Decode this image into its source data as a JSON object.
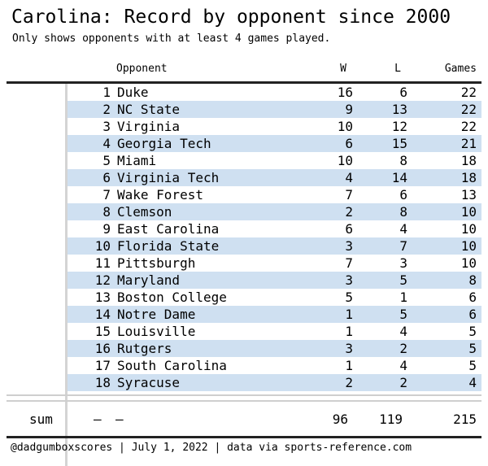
{
  "title": "Carolina: Record by opponent since 2000",
  "subtitle": "Only shows opponents with at least 4 games played.",
  "footer": "@dadgumboxscores | July 1, 2022 | data via sports-reference.com",
  "chart_data": {
    "type": "table",
    "columns": [
      "Opponent",
      "W",
      "L",
      "Games"
    ],
    "rows": [
      {
        "rank": "1",
        "opponent": "Duke",
        "w": "16",
        "l": "6",
        "games": "22"
      },
      {
        "rank": "2",
        "opponent": "NC State",
        "w": "9",
        "l": "13",
        "games": "22"
      },
      {
        "rank": "3",
        "opponent": "Virginia",
        "w": "10",
        "l": "12",
        "games": "22"
      },
      {
        "rank": "4",
        "opponent": "Georgia Tech",
        "w": "6",
        "l": "15",
        "games": "21"
      },
      {
        "rank": "5",
        "opponent": "Miami",
        "w": "10",
        "l": "8",
        "games": "18"
      },
      {
        "rank": "6",
        "opponent": "Virginia Tech",
        "w": "4",
        "l": "14",
        "games": "18"
      },
      {
        "rank": "7",
        "opponent": "Wake Forest",
        "w": "7",
        "l": "6",
        "games": "13"
      },
      {
        "rank": "8",
        "opponent": "Clemson",
        "w": "2",
        "l": "8",
        "games": "10"
      },
      {
        "rank": "9",
        "opponent": "East Carolina",
        "w": "6",
        "l": "4",
        "games": "10"
      },
      {
        "rank": "10",
        "opponent": "Florida State",
        "w": "3",
        "l": "7",
        "games": "10"
      },
      {
        "rank": "11",
        "opponent": "Pittsburgh",
        "w": "7",
        "l": "3",
        "games": "10"
      },
      {
        "rank": "12",
        "opponent": "Maryland",
        "w": "3",
        "l": "5",
        "games": "8"
      },
      {
        "rank": "13",
        "opponent": "Boston College",
        "w": "5",
        "l": "1",
        "games": "6"
      },
      {
        "rank": "14",
        "opponent": "Notre Dame",
        "w": "1",
        "l": "5",
        "games": "6"
      },
      {
        "rank": "15",
        "opponent": "Louisville",
        "w": "1",
        "l": "4",
        "games": "5"
      },
      {
        "rank": "16",
        "opponent": "Rutgers",
        "w": "3",
        "l": "2",
        "games": "5"
      },
      {
        "rank": "17",
        "opponent": "South Carolina",
        "w": "1",
        "l": "4",
        "games": "5"
      },
      {
        "rank": "18",
        "opponent": "Syracuse",
        "w": "2",
        "l": "2",
        "games": "4"
      }
    ],
    "summary": {
      "label": "sum",
      "rank": "—",
      "opponent": "—",
      "w": "96",
      "l": "119",
      "games": "215"
    },
    "stripe_color": "#cfe0f1"
  }
}
